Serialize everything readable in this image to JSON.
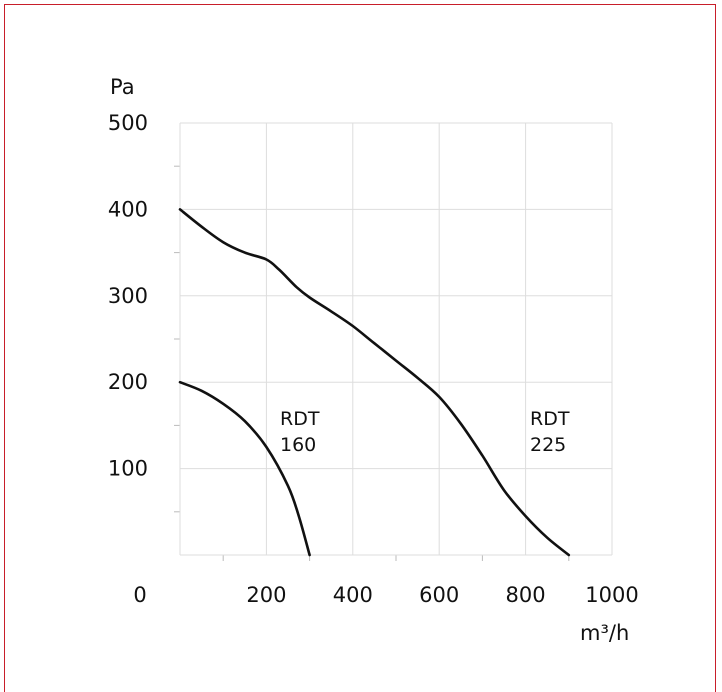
{
  "chart_data": {
    "type": "line",
    "title": "",
    "xlabel": "m³/h",
    "ylabel": "Pa",
    "xlim": [
      0,
      1000
    ],
    "ylim": [
      0,
      500
    ],
    "xticks": [
      "0",
      "200",
      "400",
      "600",
      "800",
      "1000"
    ],
    "yticks": [
      "100",
      "200",
      "300",
      "400",
      "500"
    ],
    "grid": true,
    "series": [
      {
        "name": "RDT 160",
        "label_lines": [
          "RDT",
          "160"
        ],
        "x": [
          0,
          50,
          100,
          150,
          200,
          250,
          275,
          300
        ],
        "y": [
          200,
          190,
          175,
          155,
          125,
          80,
          45,
          0
        ]
      },
      {
        "name": "RDT 225",
        "label_lines": [
          "RDT",
          "225"
        ],
        "x": [
          0,
          50,
          100,
          150,
          200,
          230,
          270,
          300,
          350,
          400,
          450,
          500,
          550,
          600,
          650,
          700,
          750,
          800,
          850,
          900
        ],
        "y": [
          400,
          380,
          362,
          350,
          342,
          330,
          310,
          298,
          282,
          265,
          245,
          225,
          205,
          183,
          152,
          115,
          75,
          45,
          20,
          0
        ]
      }
    ],
    "colors": {
      "line": "#111111",
      "grid": "#dddddd",
      "frame": "#c81e2a"
    }
  }
}
